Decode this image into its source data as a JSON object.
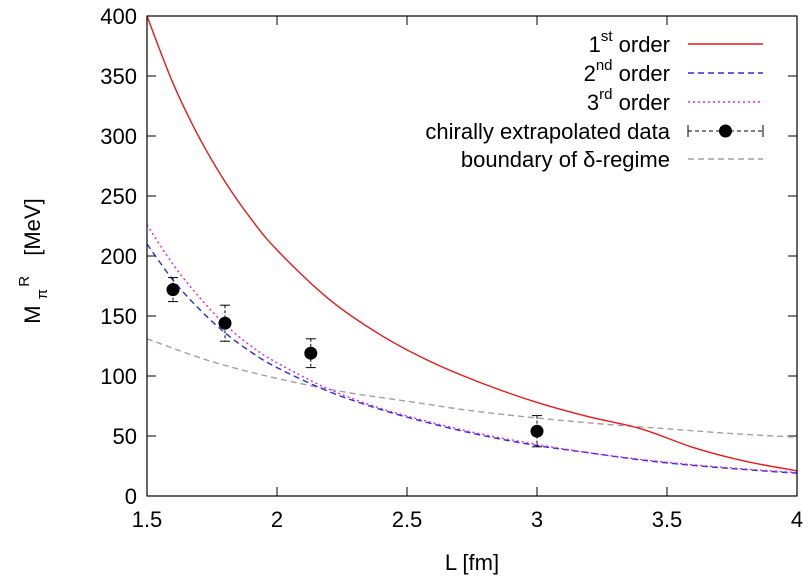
{
  "chart_data": {
    "type": "line",
    "xlabel": "L [fm]",
    "ylabel": "M_π^R [MeV]",
    "ylabel_parts": {
      "main": "M",
      "sub": "π",
      "sup": "R",
      "unit": "[MeV]"
    },
    "xlim": [
      1.5,
      4
    ],
    "ylim": [
      0,
      400
    ],
    "xticks": [
      1.5,
      2,
      2.5,
      3,
      3.5,
      4
    ],
    "yticks": [
      0,
      50,
      100,
      150,
      200,
      250,
      300,
      350,
      400
    ],
    "xtick_labels": [
      "1.5",
      "2",
      "2.5",
      "3",
      "3.5",
      "4"
    ],
    "ytick_labels": [
      "0",
      "50",
      "100",
      "150",
      "200",
      "250",
      "300",
      "350",
      "400"
    ],
    "grid": false,
    "legend_position": "top-right",
    "series": [
      {
        "name": "1st order",
        "legend": {
          "pre": "1",
          "sup": "st",
          "post": " order"
        },
        "color": "#e41a1c",
        "style": "solid",
        "x": [
          1.5,
          1.6,
          1.7,
          1.8,
          1.9,
          2.0,
          2.2,
          2.4,
          2.6,
          2.8,
          3.0,
          3.2,
          3.4,
          3.6,
          3.8,
          4.0
        ],
        "y": [
          400,
          344,
          299,
          262,
          231,
          205,
          164,
          134,
          111,
          93,
          78,
          66,
          56,
          40.5,
          29,
          21
        ]
      },
      {
        "name": "2nd order",
        "legend": {
          "pre": "2",
          "sup": "nd",
          "post": " order"
        },
        "color": "#2a2ae0",
        "style": "dashed",
        "x": [
          1.5,
          1.6,
          1.7,
          1.8,
          1.9,
          2.0,
          2.2,
          2.4,
          2.6,
          2.8,
          3.0,
          3.2,
          3.4,
          3.6,
          3.8,
          4.0
        ],
        "y": [
          210,
          180,
          156,
          136,
          120,
          107,
          87,
          72,
          60,
          50,
          42,
          36,
          30,
          25.5,
          22,
          19
        ]
      },
      {
        "name": "3rd order",
        "legend": {
          "pre": "3",
          "sup": "rd",
          "post": " order"
        },
        "color": "#e020e0",
        "style": "dotted",
        "x": [
          1.5,
          1.6,
          1.7,
          1.8,
          1.9,
          2.0,
          2.2,
          2.4,
          2.6,
          2.8,
          3.0,
          3.2,
          3.4,
          3.6,
          3.8,
          4.0
        ],
        "y": [
          226,
          193,
          166,
          143,
          125,
          111,
          89,
          73,
          61,
          51,
          43,
          36,
          30.5,
          26,
          22.5,
          19.5
        ]
      },
      {
        "name": "chirally extrapolated data",
        "legend": {
          "pre": "chirally extrapolated data",
          "sup": "",
          "post": ""
        },
        "color": "#000000",
        "style": "points",
        "x": [
          1.6,
          1.8,
          2.13,
          3.0
        ],
        "y": [
          172,
          144,
          119,
          54
        ],
        "err": [
          10,
          15,
          12,
          13
        ]
      },
      {
        "name": "boundary of δ-regime",
        "legend": {
          "pre": "boundary of δ-regime",
          "sup": "",
          "post": ""
        },
        "color": "#a0a0a0",
        "style": "dashed",
        "x": [
          1.5,
          1.75,
          2.0,
          2.25,
          2.5,
          2.75,
          3.0,
          3.25,
          3.5,
          3.75,
          4.0
        ],
        "y": [
          131,
          112,
          98,
          87,
          79,
          71,
          65,
          60,
          56,
          52,
          49
        ]
      }
    ]
  }
}
